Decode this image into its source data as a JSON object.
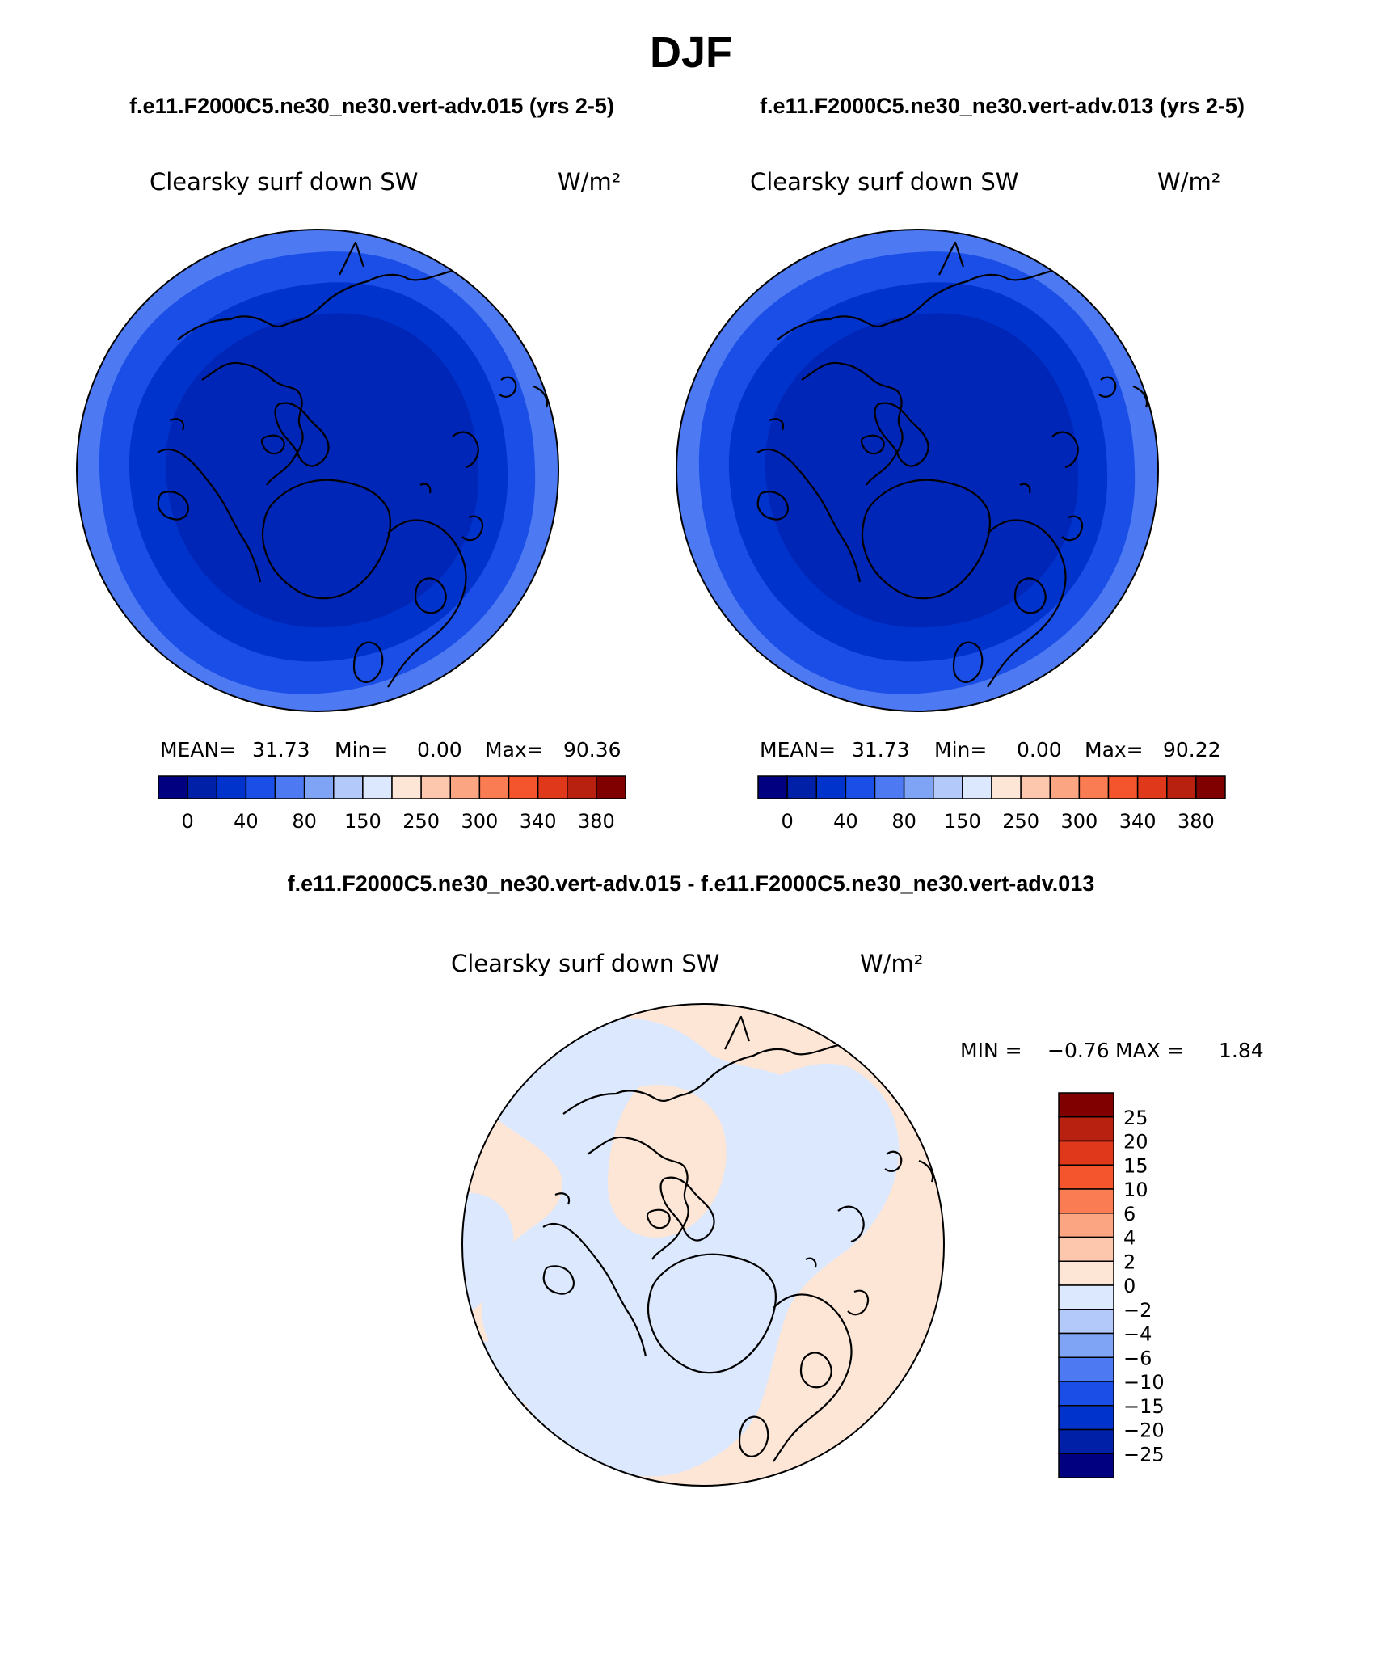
{
  "page": {
    "season_title": "DJF",
    "case_title_left": "f.e11.F2000C5.ne30_ne30.vert-adv.015 (yrs 2-5)",
    "case_title_right": "f.e11.F2000C5.ne30_ne30.vert-adv.013 (yrs 2-5)",
    "diff_title": "f.e11.F2000C5.ne30_ne30.vert-adv.015 - f.e11.F2000C5.ne30_ne30.vert-adv.013"
  },
  "chart_data": [
    {
      "type": "heatmap",
      "projection": "north polar stereographic",
      "title": "Clearsky surf down SW",
      "units": "W/m²",
      "stats_labels": [
        "MEAN=",
        "Min=",
        "Max="
      ],
      "stats_values": [
        "31.73",
        "0.00",
        "90.36"
      ],
      "colorbar_orientation": "horizontal",
      "levels": [
        "0",
        "40",
        "80",
        "150",
        "250",
        "300",
        "340",
        "380"
      ],
      "colors": [
        "#000080",
        "#0020a8",
        "#0033cc",
        "#1a4ee6",
        "#4d7af2",
        "#7fa3f5",
        "#b3c9fa",
        "#dce8fd",
        "#fde6d6",
        "#fcc7ac",
        "#fba583",
        "#f97c52",
        "#f4552c",
        "#e0381a",
        "#b82010",
        "#800000"
      ],
      "region_fill": [
        "#0026b8",
        "#0033cc",
        "#1a4ee6",
        "#4d7af2"
      ]
    },
    {
      "type": "heatmap",
      "projection": "north polar stereographic",
      "title": "Clearsky surf down SW",
      "units": "W/m²",
      "stats_labels": [
        "MEAN=",
        "Min=",
        "Max="
      ],
      "stats_values": [
        "31.73",
        "0.00",
        "90.22"
      ],
      "colorbar_orientation": "horizontal",
      "levels": [
        "0",
        "40",
        "80",
        "150",
        "250",
        "300",
        "340",
        "380"
      ],
      "colors": [
        "#000080",
        "#0020a8",
        "#0033cc",
        "#1a4ee6",
        "#4d7af2",
        "#7fa3f5",
        "#b3c9fa",
        "#dce8fd",
        "#fde6d6",
        "#fcc7ac",
        "#fba583",
        "#f97c52",
        "#f4552c",
        "#e0381a",
        "#b82010",
        "#800000"
      ],
      "region_fill": [
        "#0026b8",
        "#0033cc",
        "#1a4ee6",
        "#4d7af2"
      ]
    },
    {
      "type": "heatmap",
      "projection": "north polar stereographic",
      "title": "Clearsky surf down SW",
      "units": "W/m²",
      "stats_labels": [
        "MIN =",
        "MAX ="
      ],
      "stats_values": [
        "−0.76",
        "1.84"
      ],
      "colorbar_orientation": "vertical",
      "levels": [
        "25",
        "20",
        "15",
        "10",
        "6",
        "4",
        "2",
        "0",
        "−2",
        "−4",
        "−6",
        "−10",
        "−15",
        "−20",
        "−25"
      ],
      "colors": [
        "#800000",
        "#b82010",
        "#e0381a",
        "#f4552c",
        "#f97c52",
        "#fba583",
        "#fcc7ac",
        "#fde6d6",
        "#dce8fd",
        "#b3c9fa",
        "#7fa3f5",
        "#4d7af2",
        "#1a4ee6",
        "#0033cc",
        "#0020a8",
        "#000080"
      ],
      "region_fill": [
        "#fde6d6",
        "#dce8fd"
      ]
    }
  ]
}
